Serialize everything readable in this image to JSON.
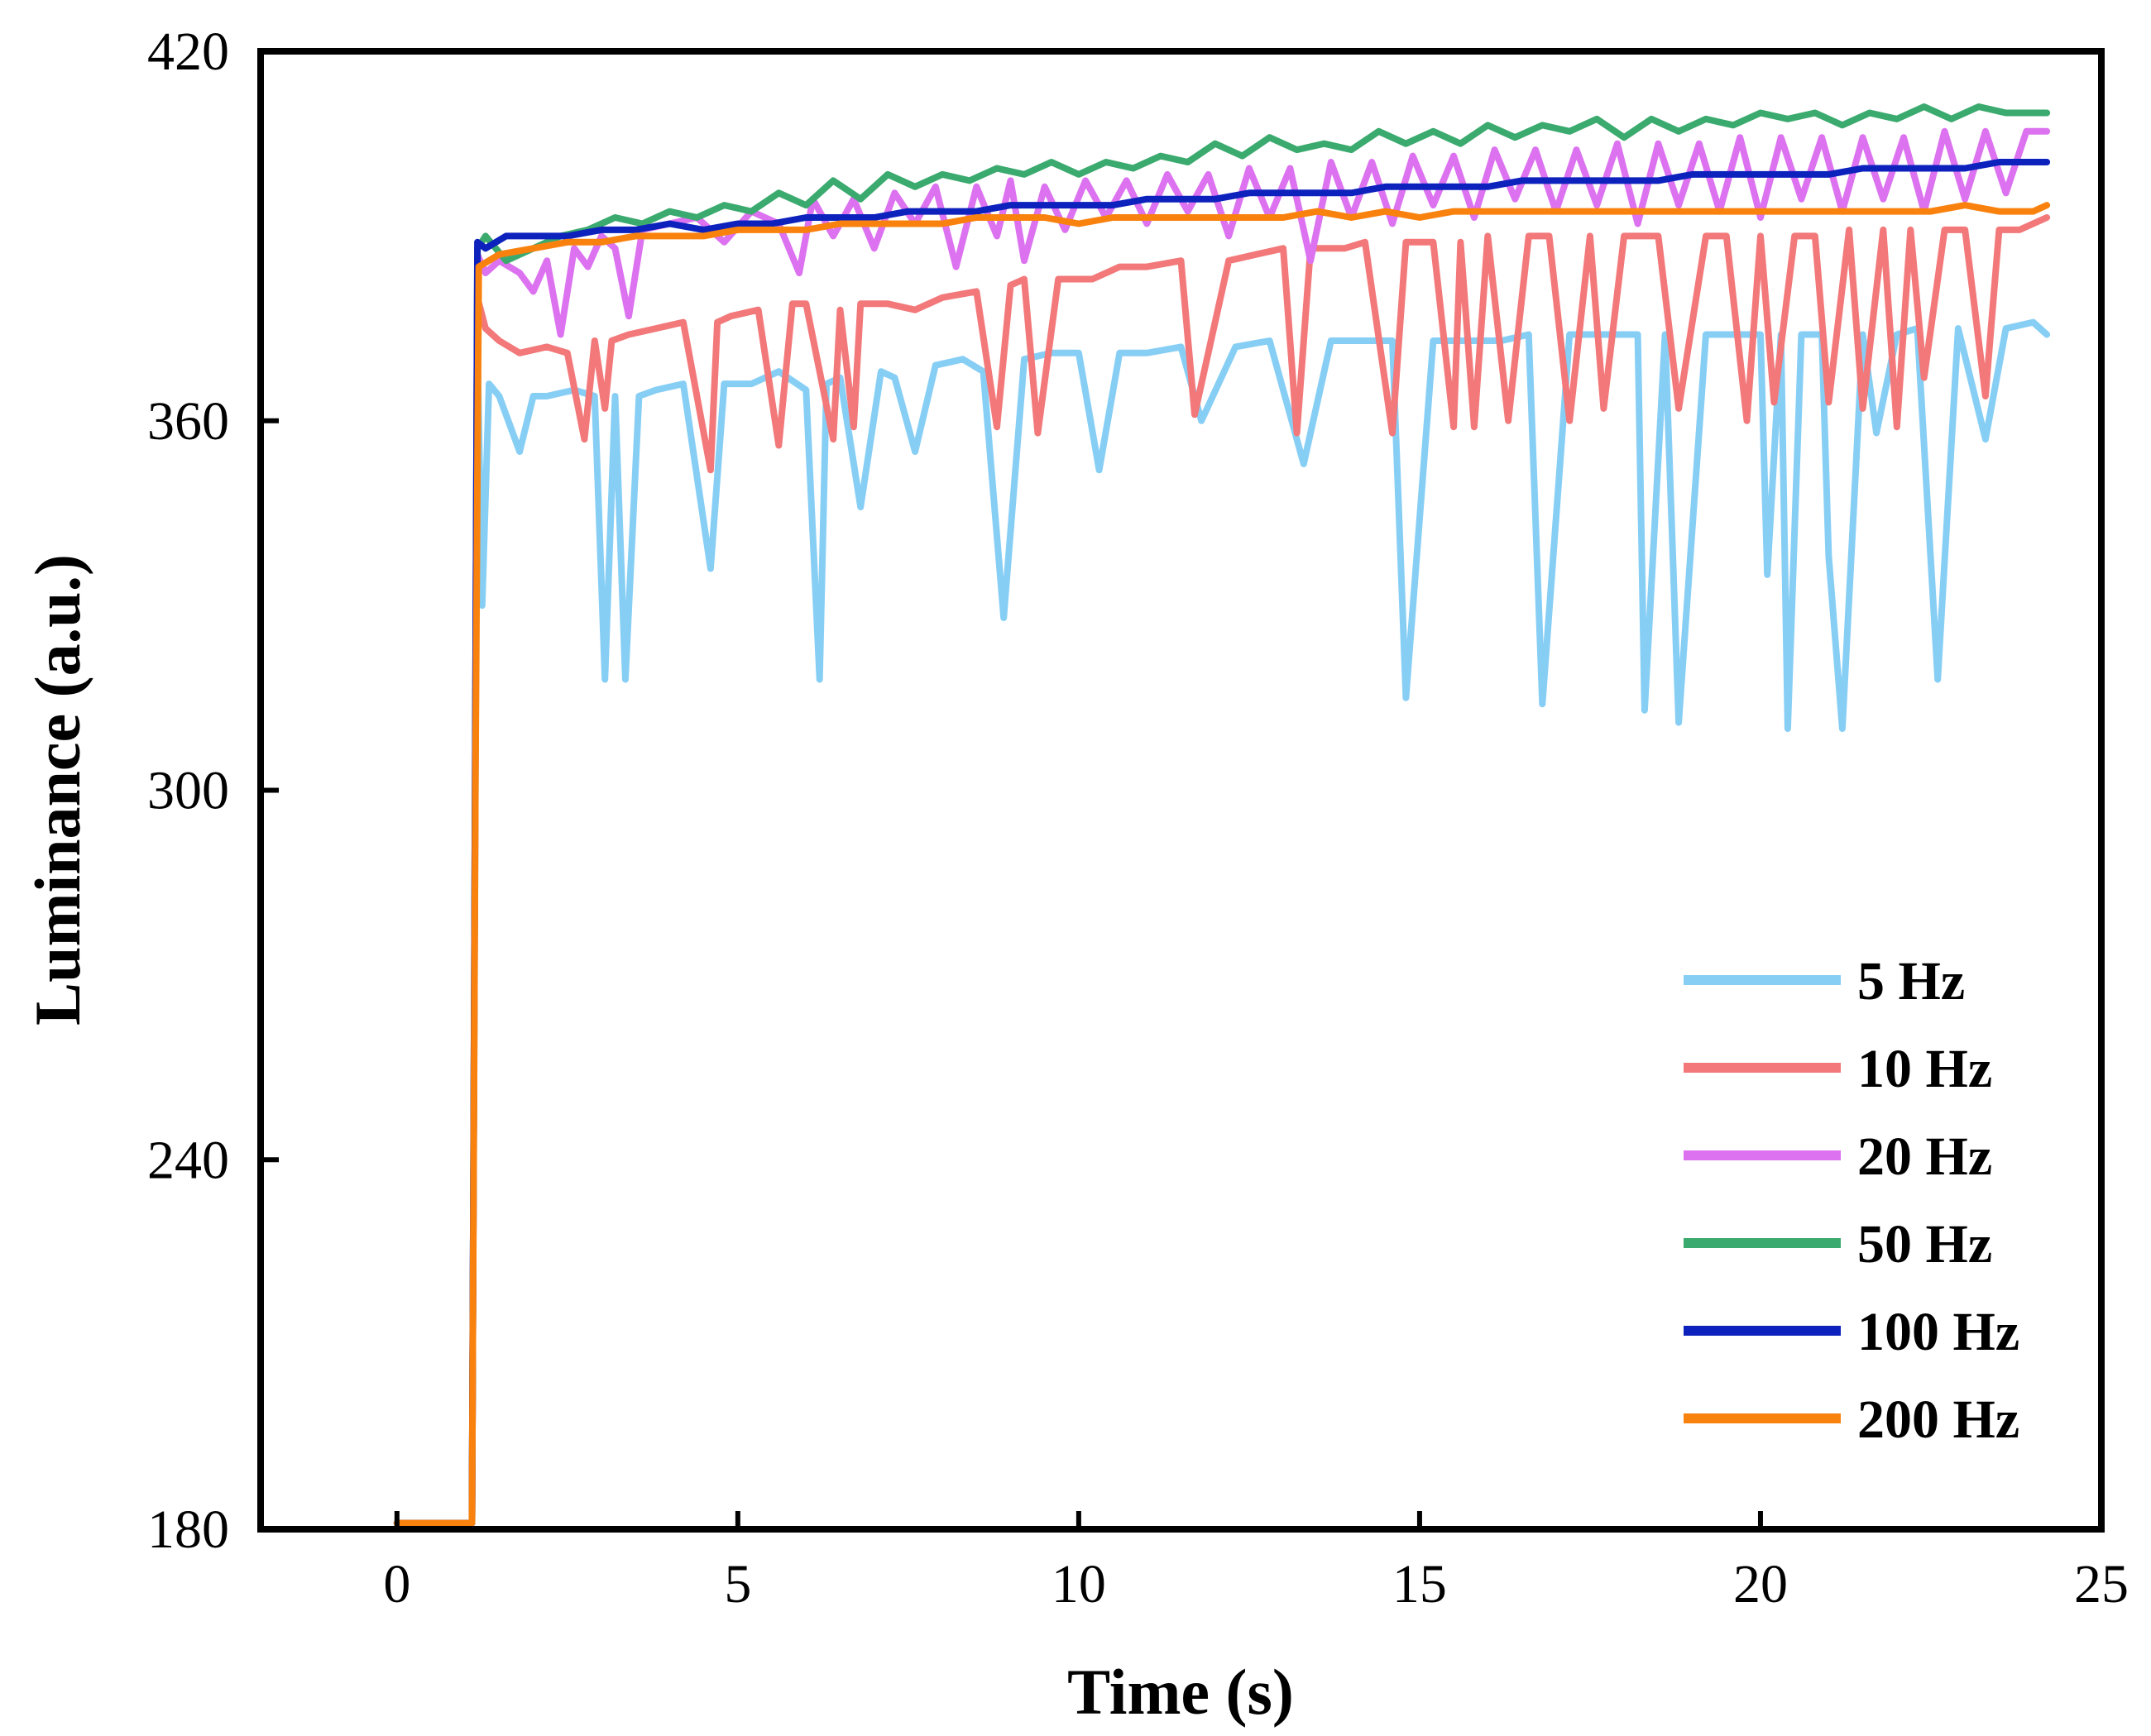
{
  "chart_data": {
    "type": "line",
    "title": "",
    "xlabel": "Time (s)",
    "ylabel": "Luminance (a.u.)",
    "xlim": [
      -2,
      25
    ],
    "ylim": [
      180,
      420
    ],
    "xticks": [
      0,
      5,
      10,
      15,
      20,
      25
    ],
    "yticks": [
      180,
      240,
      300,
      360,
      420
    ],
    "xtick_labels": [
      "0",
      "5",
      "10",
      "15",
      "20",
      "25"
    ],
    "ytick_labels": [
      "180",
      "240",
      "300",
      "360",
      "420"
    ],
    "grid": false,
    "legend_position": "bottom-right",
    "series": [
      {
        "name": "5 Hz",
        "color": "#87CEF5",
        "x": [
          0,
          1.1,
          1.18,
          1.25,
          1.35,
          1.5,
          1.8,
          2.0,
          2.2,
          2.6,
          2.9,
          3.05,
          3.2,
          3.35,
          3.55,
          3.8,
          4.2,
          4.6,
          4.8,
          5.2,
          5.6,
          6.0,
          6.2,
          6.3,
          6.5,
          6.8,
          7.1,
          7.3,
          7.6,
          7.9,
          8.3,
          8.6,
          8.9,
          9.2,
          9.6,
          10.0,
          10.3,
          10.6,
          11.0,
          11.5,
          11.8,
          12.3,
          12.8,
          13.3,
          13.7,
          14.2,
          14.6,
          14.8,
          15.2,
          15.7,
          16.2,
          16.6,
          16.8,
          17.2,
          17.7,
          18.2,
          18.3,
          18.6,
          18.8,
          19.2,
          19.6,
          20.0,
          20.1,
          20.3,
          20.4,
          20.6,
          20.9,
          21.0,
          21.2,
          21.5,
          21.7,
          22.0,
          22.3,
          22.6,
          22.9,
          23.3,
          23.6,
          24.0,
          24.2
        ],
        "y": [
          181,
          181,
          372,
          330,
          366,
          364,
          355,
          364,
          364,
          365,
          364,
          318,
          364,
          318,
          364,
          365,
          366,
          336,
          366,
          366,
          368,
          365,
          318,
          366,
          367,
          346,
          368,
          367,
          355,
          369,
          370,
          368,
          328,
          370,
          371,
          371,
          352,
          371,
          371,
          372,
          360,
          372,
          373,
          353,
          373,
          373,
          373,
          315,
          373,
          373,
          373,
          374,
          314,
          374,
          374,
          374,
          313,
          374,
          311,
          374,
          374,
          374,
          335,
          374,
          310,
          374,
          374,
          338,
          310,
          374,
          358,
          374,
          375,
          318,
          375,
          357,
          375,
          376,
          374
        ]
      },
      {
        "name": "10 Hz",
        "color": "#F2787A",
        "x": [
          0,
          1.1,
          1.18,
          1.3,
          1.5,
          1.8,
          2.2,
          2.5,
          2.75,
          2.9,
          3.05,
          3.15,
          3.4,
          3.8,
          4.2,
          4.6,
          4.7,
          4.9,
          5.3,
          5.6,
          5.8,
          6.0,
          6.4,
          6.5,
          6.7,
          6.8,
          7.2,
          7.6,
          8.0,
          8.5,
          8.8,
          9.0,
          9.2,
          9.4,
          9.7,
          10.2,
          10.6,
          11.0,
          11.5,
          11.7,
          12.2,
          12.6,
          13.0,
          13.2,
          13.4,
          13.9,
          14.2,
          14.6,
          14.8,
          15.2,
          15.5,
          15.6,
          15.8,
          16.0,
          16.3,
          16.6,
          16.9,
          17.2,
          17.5,
          17.7,
          18.0,
          18.5,
          18.8,
          19.2,
          19.5,
          19.8,
          20.0,
          20.2,
          20.5,
          20.8,
          21.0,
          21.3,
          21.5,
          21.8,
          22.0,
          22.2,
          22.4,
          22.7,
          23.0,
          23.3,
          23.5,
          23.8,
          24.2
        ],
        "y": [
          181,
          181,
          380,
          375,
          373,
          371,
          372,
          371,
          357,
          373,
          362,
          373,
          374,
          375,
          376,
          352,
          376,
          377,
          378,
          356,
          379,
          379,
          357,
          378,
          359,
          379,
          379,
          378,
          380,
          381,
          359,
          382,
          383,
          358,
          383,
          383,
          385,
          385,
          386,
          361,
          386,
          387,
          388,
          358,
          388,
          388,
          389,
          358,
          389,
          389,
          359,
          389,
          359,
          390,
          360,
          390,
          390,
          360,
          390,
          362,
          390,
          390,
          362,
          390,
          390,
          360,
          390,
          363,
          390,
          390,
          363,
          391,
          362,
          391,
          359,
          391,
          367,
          391,
          391,
          364,
          391,
          391,
          393
        ]
      },
      {
        "name": "20 Hz",
        "color": "#DC72F0",
        "x": [
          0,
          1.1,
          1.18,
          1.3,
          1.5,
          1.8,
          2.0,
          2.2,
          2.4,
          2.6,
          2.8,
          3.0,
          3.2,
          3.4,
          3.6,
          4.0,
          4.4,
          4.8,
          5.2,
          5.6,
          5.9,
          6.1,
          6.4,
          6.7,
          7.0,
          7.3,
          7.6,
          7.9,
          8.2,
          8.5,
          8.8,
          9.0,
          9.2,
          9.5,
          9.8,
          10.1,
          10.4,
          10.7,
          11.0,
          11.3,
          11.6,
          11.9,
          12.2,
          12.5,
          12.8,
          13.1,
          13.4,
          13.7,
          14.0,
          14.3,
          14.6,
          14.9,
          15.2,
          15.5,
          15.8,
          16.1,
          16.4,
          16.7,
          17.0,
          17.3,
          17.6,
          17.9,
          18.2,
          18.5,
          18.8,
          19.1,
          19.4,
          19.7,
          20.0,
          20.3,
          20.6,
          20.9,
          21.2,
          21.5,
          21.8,
          22.1,
          22.4,
          22.7,
          23.0,
          23.3,
          23.6,
          23.9,
          24.2
        ],
        "y": [
          181,
          181,
          387,
          384,
          386,
          384,
          381,
          386,
          374,
          388,
          385,
          390,
          388,
          377,
          391,
          392,
          393,
          389,
          394,
          392,
          384,
          396,
          390,
          396,
          388,
          397,
          392,
          398,
          385,
          398,
          390,
          399,
          386,
          398,
          391,
          399,
          393,
          399,
          392,
          400,
          394,
          400,
          390,
          401,
          393,
          401,
          386,
          402,
          393,
          402,
          392,
          403,
          395,
          403,
          393,
          404,
          396,
          404,
          394,
          404,
          395,
          405,
          392,
          405,
          395,
          405,
          394,
          406,
          393,
          406,
          396,
          406,
          394,
          406,
          396,
          406,
          394,
          407,
          396,
          407,
          397,
          407,
          407
        ]
      },
      {
        "name": "50 Hz",
        "color": "#3BAA6E",
        "x": [
          0,
          1.1,
          1.18,
          1.3,
          1.6,
          2.0,
          2.4,
          2.8,
          3.2,
          3.6,
          4.0,
          4.4,
          4.8,
          5.2,
          5.6,
          6.0,
          6.4,
          6.8,
          7.2,
          7.6,
          8.0,
          8.4,
          8.8,
          9.2,
          9.6,
          10.0,
          10.4,
          10.8,
          11.2,
          11.6,
          12.0,
          12.4,
          12.8,
          13.2,
          13.6,
          14.0,
          14.4,
          14.8,
          15.2,
          15.6,
          16.0,
          16.4,
          16.8,
          17.2,
          17.6,
          18.0,
          18.4,
          18.8,
          19.2,
          19.6,
          20.0,
          20.4,
          20.8,
          21.2,
          21.6,
          22.0,
          22.4,
          22.8,
          23.2,
          23.6,
          24.0,
          24.2
        ],
        "y": [
          181,
          181,
          388,
          390,
          386,
          388,
          390,
          391,
          393,
          392,
          394,
          393,
          395,
          394,
          397,
          395,
          399,
          396,
          400,
          398,
          400,
          399,
          401,
          400,
          402,
          400,
          402,
          401,
          403,
          402,
          405,
          403,
          406,
          404,
          405,
          404,
          407,
          405,
          407,
          405,
          408,
          406,
          408,
          407,
          409,
          406,
          409,
          407,
          409,
          408,
          410,
          409,
          410,
          408,
          410,
          409,
          411,
          409,
          411,
          410,
          410,
          410
        ]
      },
      {
        "name": "100 Hz",
        "color": "#0D22BD",
        "x": [
          0,
          1.1,
          1.18,
          1.3,
          1.6,
          2.0,
          2.5,
          3.0,
          3.5,
          4.0,
          4.5,
          5.0,
          5.5,
          6.0,
          6.5,
          7.0,
          7.5,
          8.0,
          8.5,
          9.0,
          9.5,
          10.0,
          10.5,
          11.0,
          11.5,
          12.0,
          12.5,
          13.0,
          13.5,
          14.0,
          14.5,
          15.0,
          15.5,
          16.0,
          16.5,
          17.0,
          17.5,
          18.0,
          18.5,
          19.0,
          19.5,
          20.0,
          20.5,
          21.0,
          21.5,
          22.0,
          22.5,
          23.0,
          23.5,
          24.0,
          24.2
        ],
        "y": [
          181,
          181,
          389,
          388,
          390,
          390,
          390,
          391,
          391,
          392,
          391,
          392,
          392,
          393,
          393,
          393,
          394,
          394,
          394,
          395,
          395,
          395,
          395,
          396,
          396,
          396,
          397,
          397,
          397,
          397,
          398,
          398,
          398,
          398,
          399,
          399,
          399,
          399,
          399,
          400,
          400,
          400,
          400,
          400,
          401,
          401,
          401,
          401,
          402,
          402,
          402
        ]
      },
      {
        "name": "200 Hz",
        "color": "#F9820F",
        "x": [
          0,
          1.1,
          1.15,
          1.2,
          1.5,
          2.0,
          2.5,
          3.0,
          3.5,
          4.0,
          4.5,
          5.0,
          5.5,
          6.0,
          6.5,
          7.0,
          7.5,
          8.0,
          8.5,
          9.0,
          9.5,
          10.0,
          10.5,
          11.0,
          11.5,
          12.0,
          12.5,
          13.0,
          13.5,
          14.0,
          14.5,
          15.0,
          15.5,
          16.0,
          16.5,
          17.0,
          17.5,
          18.0,
          18.5,
          19.0,
          19.5,
          20.0,
          20.5,
          21.0,
          21.5,
          22.0,
          22.5,
          23.0,
          23.5,
          24.0,
          24.2
        ],
        "y": [
          181,
          181,
          300,
          385,
          387,
          388,
          389,
          389,
          390,
          390,
          390,
          391,
          391,
          391,
          392,
          392,
          392,
          392,
          393,
          393,
          393,
          392,
          393,
          393,
          393,
          393,
          393,
          393,
          394,
          393,
          394,
          393,
          394,
          394,
          394,
          394,
          394,
          394,
          394,
          394,
          394,
          394,
          394,
          394,
          394,
          394,
          394,
          395,
          394,
          394,
          395
        ]
      }
    ]
  }
}
